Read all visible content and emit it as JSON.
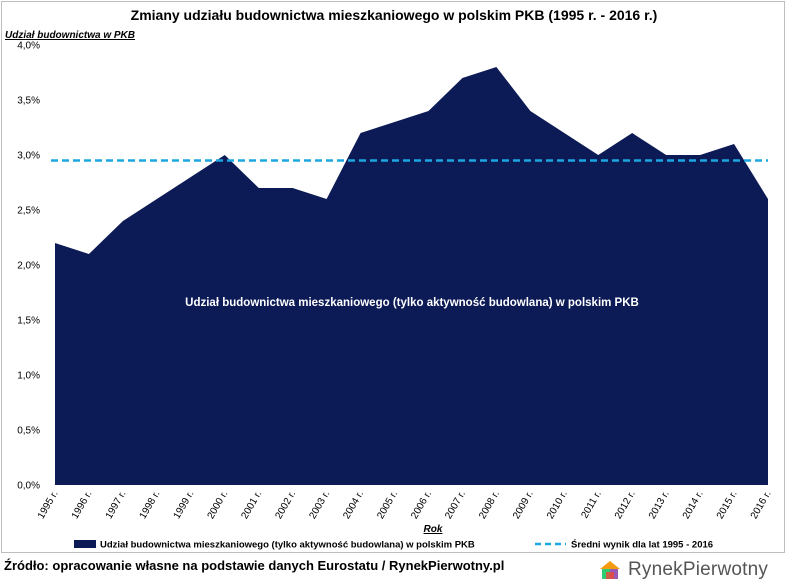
{
  "chart_data": {
    "type": "area",
    "title": "Zmiany udziału budownictwa mieszkaniowego w polskim PKB (1995 r. - 2016 r.)",
    "ylabel": "Udział budownictwa w PKB",
    "xlabel": "Rok",
    "categories": [
      "1995 r.",
      "1996 r.",
      "1997 r.",
      "1998 r.",
      "1999 r.",
      "2000 r.",
      "2001 r.",
      "2002 r.",
      "2003 r.",
      "2004 r.",
      "2005 r.",
      "2006 r.",
      "2007 r.",
      "2008 r.",
      "2009 r.",
      "2010 r.",
      "2011 r.",
      "2012 r.",
      "2013 r.",
      "2014 r.",
      "2015 r.",
      "2016 r."
    ],
    "series": [
      {
        "name": "Udział budownictwa mieszkaniowego (tylko aktywność budowlana) w polskim PKB",
        "values": [
          2.2,
          2.1,
          2.4,
          2.6,
          2.8,
          3.0,
          2.7,
          2.7,
          2.6,
          3.2,
          3.3,
          3.4,
          3.7,
          3.8,
          3.4,
          3.2,
          3.0,
          3.2,
          3.0,
          3.0,
          3.1,
          2.6
        ],
        "color": "#0c1a55"
      },
      {
        "name": "Średni wynik dla lat 1995 - 2016",
        "type": "line",
        "style": "dashed",
        "value": 2.95,
        "color": "#1ca7e0"
      }
    ],
    "ylim": [
      0,
      4
    ],
    "yticks": [
      "0,0%",
      "0,5%",
      "1,0%",
      "1,5%",
      "2,0%",
      "2,5%",
      "3,0%",
      "3,5%",
      "4,0%"
    ],
    "ytick_values": [
      0,
      0.5,
      1.0,
      1.5,
      2.0,
      2.5,
      3.0,
      3.5,
      4.0
    ],
    "annotation": "Udział budownictwa mieszkaniowego (tylko aktywność budowlana) w polskim PKB",
    "grid": false,
    "legend_position": "bottom"
  },
  "footer": {
    "source": "Źródło: opracowanie własne na podstawie danych Eurostatu / RynekPierwotny.pl",
    "logo_text": "RynekPierwotny"
  }
}
